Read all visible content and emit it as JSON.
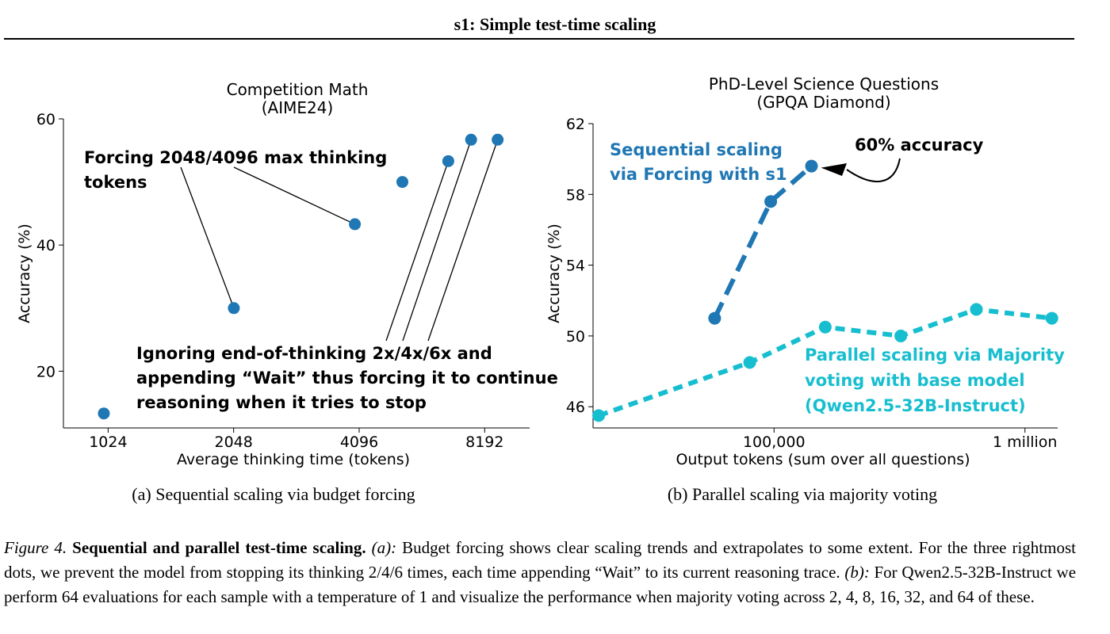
{
  "header": {
    "title": "s1: Simple test-time scaling"
  },
  "colors": {
    "seq": "#1f77b4",
    "par": "#17becf",
    "ink": "#000000"
  },
  "figures": [
    {
      "subcaption": "(a) Sequential scaling via budget forcing",
      "chart_data": {
        "type": "scatter",
        "title": [
          "Competition Math",
          "(AIME24)"
        ],
        "xlabel": "Average thinking time (tokens)",
        "ylabel": "Accuracy (%)",
        "xscale": "log2",
        "xlim": [
          800,
          10500
        ],
        "ylim": [
          11,
          60
        ],
        "xticks": [
          1024,
          2048,
          4096,
          8192
        ],
        "xtick_labels": [
          "1024",
          "2048",
          "4096",
          "8192"
        ],
        "yticks": [
          20,
          40,
          60
        ],
        "ytick_labels": [
          "20",
          "40",
          "60"
        ],
        "grid": false,
        "series": [
          {
            "points": [
              {
                "x": 1000,
                "y": 13.3
              },
              {
                "x": 2050,
                "y": 30.0
              },
              {
                "x": 4000,
                "y": 43.3
              },
              {
                "x": 5200,
                "y": 50.0
              },
              {
                "x": 6700,
                "y": 53.3
              },
              {
                "x": 7600,
                "y": 56.7
              },
              {
                "x": 8800,
                "y": 56.7
              }
            ]
          }
        ],
        "annotations": [
          {
            "text": [
              "Forcing 2048/4096 max thinking",
              "tokens"
            ]
          },
          {
            "text": [
              "Ignoring end-of-thinking 2x/4x/6x and",
              "appending “Wait” thus forcing it to continue",
              "reasoning when it tries to stop"
            ]
          }
        ]
      }
    },
    {
      "subcaption": "(b) Parallel scaling via majority voting",
      "chart_data": {
        "type": "line",
        "title": [
          "PhD-Level Science Questions",
          "(GPQA Diamond)"
        ],
        "xlabel": "Output tokens (sum over all questions)",
        "ylabel": "Accuracy (%)",
        "xscale": "log",
        "xlim": [
          19000,
          1350000
        ],
        "ylim": [
          44.8,
          62
        ],
        "xticks": [
          100000,
          1000000
        ],
        "xtick_labels": [
          "100,000",
          "1 million"
        ],
        "yticks": [
          46,
          50,
          54,
          58,
          62
        ],
        "ytick_labels": [
          "46",
          "50",
          "54",
          "58",
          "62"
        ],
        "grid": false,
        "series": [
          {
            "name": "Sequential scaling via Forcing with s1",
            "points": [
              {
                "x": 58000,
                "y": 51.0
              },
              {
                "x": 97000,
                "y": 57.6
              },
              {
                "x": 141000,
                "y": 59.6
              }
            ]
          },
          {
            "name": "Parallel scaling via Majority voting with base model (Qwen2.5-32B-Instruct)",
            "points": [
              {
                "x": 20000,
                "y": 45.5
              },
              {
                "x": 80000,
                "y": 48.5
              },
              {
                "x": 160000,
                "y": 50.5
              },
              {
                "x": 320000,
                "y": 50.0
              },
              {
                "x": 640000,
                "y": 51.5
              },
              {
                "x": 1280000,
                "y": 51.0
              }
            ]
          }
        ],
        "annotations": [
          {
            "text": [
              "Sequential scaling",
              "via Forcing with s1"
            ]
          },
          {
            "text": [
              "60% accuracy"
            ]
          },
          {
            "text": [
              "Parallel scaling via Majority",
              "voting with base model",
              "(Qwen2.5-32B-Instruct)"
            ]
          }
        ]
      }
    }
  ],
  "caption": {
    "label": "Figure 4.",
    "bold": "Sequential and parallel test-time scaling.",
    "a_label": "(a):",
    "a_text": "Budget forcing shows clear scaling trends and extrapolates to some extent. For the three rightmost dots, we prevent the model from stopping its thinking 2/4/6 times, each time appending “Wait” to its current reasoning trace.",
    "b_label": "(b):",
    "b_text": "For Qwen2.5-32B-Instruct we perform 64 evaluations for each sample with a temperature of 1 and visualize the performance when majority voting across 2, 4, 8, 16, 32, and 64 of these."
  }
}
